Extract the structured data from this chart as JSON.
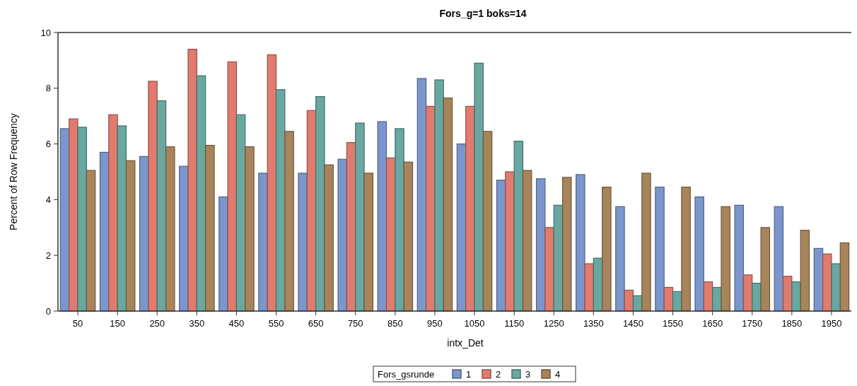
{
  "chart_data": {
    "type": "bar",
    "title": "Fors_g=1 boks=14",
    "xlabel": "intx_Det",
    "ylabel": "Percent of Row Frequency",
    "legend_title": "Fors_gsrunde",
    "legend": "bottom",
    "categories": [
      "50",
      "150",
      "250",
      "350",
      "450",
      "550",
      "650",
      "750",
      "850",
      "950",
      "1050",
      "1150",
      "1250",
      "1350",
      "1450",
      "1550",
      "1650",
      "1750",
      "1850",
      "1950"
    ],
    "ylim": [
      0,
      10
    ],
    "yticks": [
      0,
      2,
      4,
      6,
      8,
      10
    ],
    "series": [
      {
        "name": "1",
        "color": "#7b96cc",
        "values": [
          6.55,
          5.7,
          5.55,
          5.2,
          4.1,
          4.95,
          4.95,
          5.45,
          6.8,
          8.35,
          6.0,
          4.7,
          4.75,
          4.9,
          3.75,
          4.45,
          4.1,
          3.8,
          3.75,
          2.25
        ]
      },
      {
        "name": "2",
        "color": "#e07b6e",
        "values": [
          6.9,
          7.05,
          8.25,
          9.4,
          8.95,
          9.2,
          7.2,
          6.05,
          5.5,
          7.35,
          7.35,
          5.0,
          3.0,
          1.7,
          0.75,
          0.85,
          1.05,
          1.3,
          1.25,
          2.05
        ]
      },
      {
        "name": "3",
        "color": "#68a8a0",
        "values": [
          6.6,
          6.65,
          7.55,
          8.45,
          7.05,
          7.95,
          7.7,
          6.75,
          6.55,
          8.3,
          8.9,
          6.1,
          3.8,
          1.9,
          0.55,
          0.7,
          0.85,
          1.0,
          1.05,
          1.7
        ]
      },
      {
        "name": "4",
        "color": "#a8845a",
        "values": [
          5.05,
          5.4,
          5.9,
          5.95,
          5.9,
          6.45,
          5.25,
          4.95,
          5.35,
          7.65,
          6.45,
          5.05,
          4.8,
          4.45,
          4.95,
          4.45,
          3.75,
          3.0,
          2.9,
          2.45
        ]
      }
    ]
  }
}
